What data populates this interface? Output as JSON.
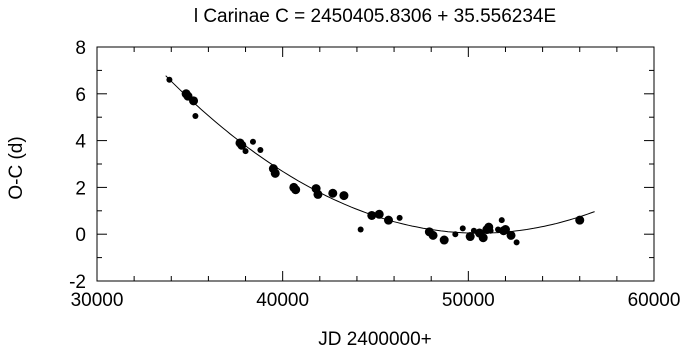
{
  "chart_data": {
    "type": "scatter",
    "title": "l Carinae   C = 2450405.8306 + 35.556234E",
    "xlabel": "JD 2400000+",
    "ylabel": "O-C (d)",
    "xlim": [
      30000,
      60000
    ],
    "ylim": [
      -2,
      8
    ],
    "grid": false,
    "x_ticks": [
      30000,
      40000,
      50000,
      60000
    ],
    "y_ticks": [
      -2,
      0,
      2,
      4,
      6,
      8
    ],
    "fit_curve": {
      "type": "parabola",
      "points": [
        [
          33700,
          6.8
        ],
        [
          40000,
          2.6
        ],
        [
          45000,
          0.85
        ],
        [
          48000,
          0.18
        ],
        [
          51000,
          0.05
        ],
        [
          53000,
          0.2
        ],
        [
          56800,
          0.95
        ]
      ]
    },
    "series": [
      {
        "x": [
          33900,
          34800,
          34900,
          35200,
          35300,
          37700,
          37800,
          38000,
          38400,
          38800,
          39500,
          39600,
          40600,
          40700,
          41800,
          41900,
          42700,
          43300,
          44200,
          44800,
          45200,
          45700,
          46300,
          47900,
          48100,
          48700,
          49300,
          49700,
          50100,
          50300,
          50600,
          50800,
          51000,
          51100,
          51200,
          51600,
          51800,
          51900,
          52000,
          52300,
          52600,
          56000
        ],
        "y": [
          6.6,
          6.0,
          5.9,
          5.7,
          5.05,
          3.9,
          3.8,
          3.55,
          3.95,
          3.6,
          2.8,
          2.6,
          2.0,
          1.9,
          1.95,
          1.7,
          1.75,
          1.65,
          0.2,
          0.8,
          0.85,
          0.6,
          0.7,
          0.1,
          -0.05,
          -0.25,
          0.0,
          0.25,
          -0.1,
          0.15,
          0.05,
          -0.15,
          0.2,
          0.3,
          0.15,
          0.2,
          0.6,
          0.15,
          0.2,
          -0.05,
          -0.35,
          0.6
        ],
        "sizes": [
          1,
          2,
          2,
          2,
          1,
          2,
          2,
          1,
          1,
          1,
          2,
          2,
          2,
          2,
          2,
          2,
          2,
          2,
          1,
          2,
          2,
          2,
          1,
          2,
          2,
          2,
          1,
          1,
          2,
          1,
          2,
          2,
          2,
          2,
          1,
          1,
          1,
          2,
          2,
          2,
          1,
          2
        ]
      }
    ]
  }
}
